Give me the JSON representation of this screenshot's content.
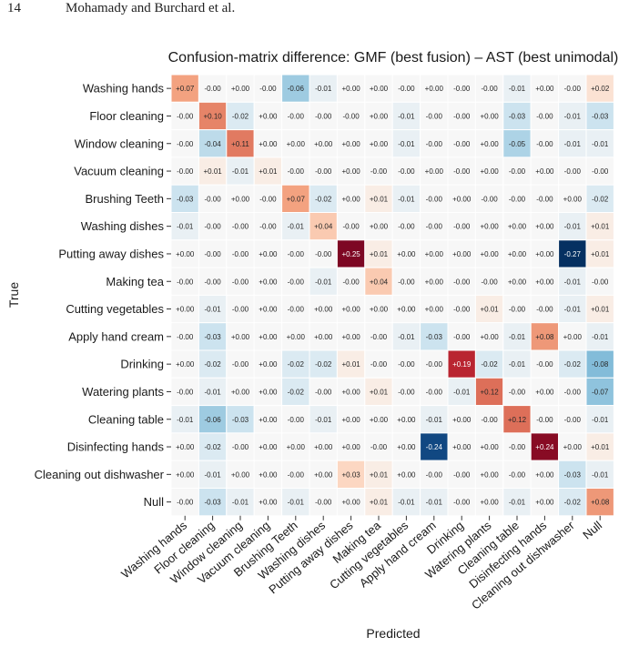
{
  "page_header": {
    "page_number": "14",
    "authors": "Mohamady and Burchard et al."
  },
  "chart_data": {
    "type": "heatmap",
    "title": "Confusion-matrix difference:  GMF (best fusion) – AST (best unimodal)",
    "xlabel": "Predicted",
    "ylabel": "True",
    "rows": [
      "Washing hands",
      "Floor cleaning",
      "Window cleaning",
      "Vacuum cleaning",
      "Brushing Teeth",
      "Washing dishes",
      "Putting away dishes",
      "Making tea",
      "Cutting vegetables",
      "Apply hand cream",
      "Drinking",
      "Watering plants",
      "Cleaning table",
      "Disinfecting hands",
      "Cleaning out dishwasher",
      "Null"
    ],
    "columns": [
      "Washing hands",
      "Floor cleaning",
      "Window cleaning",
      "Vacuum cleaning",
      "Brushing Teeth",
      "Washing dishes",
      "Putting away dishes",
      "Making tea",
      "Cutting vegetables",
      "Apply hand cream",
      "Drinking",
      "Watering plants",
      "Cleaning table",
      "Disinfecting hands",
      "Cleaning out dishwasher",
      "Null"
    ],
    "cell_labels": [
      [
        "+0.07",
        "-0.00",
        "+0.00",
        "-0.00",
        "-0.06",
        "-0.01",
        "+0.00",
        "+0.00",
        "-0.00",
        "+0.00",
        "-0.00",
        "-0.00",
        "-0.01",
        "+0.00",
        "-0.00",
        "+0.02"
      ],
      [
        "-0.00",
        "+0.10",
        "-0.02",
        "+0.00",
        "-0.00",
        "-0.00",
        "-0.00",
        "+0.00",
        "-0.01",
        "-0.00",
        "-0.00",
        "+0.00",
        "-0.03",
        "-0.00",
        "-0.01",
        "-0.03"
      ],
      [
        "-0.00",
        "-0.04",
        "+0.11",
        "+0.00",
        "+0.00",
        "+0.00",
        "+0.00",
        "+0.00",
        "-0.01",
        "-0.00",
        "-0.00",
        "+0.00",
        "-0.05",
        "-0.00",
        "-0.01",
        "-0.01"
      ],
      [
        "-0.00",
        "+0.01",
        "-0.01",
        "+0.01",
        "-0.00",
        "-0.00",
        "+0.00",
        "-0.00",
        "-0.00",
        "+0.00",
        "-0.00",
        "+0.00",
        "-0.00",
        "+0.00",
        "-0.00",
        "-0.00"
      ],
      [
        "-0.03",
        "-0.00",
        "+0.00",
        "-0.00",
        "+0.07",
        "-0.02",
        "+0.00",
        "+0.01",
        "-0.01",
        "-0.00",
        "+0.00",
        "-0.00",
        "-0.00",
        "-0.00",
        "+0.00",
        "-0.02"
      ],
      [
        "-0.01",
        "-0.00",
        "-0.00",
        "-0.00",
        "-0.01",
        "+0.04",
        "-0.00",
        "+0.00",
        "-0.00",
        "-0.00",
        "-0.00",
        "+0.00",
        "+0.00",
        "+0.00",
        "-0.01",
        "+0.01"
      ],
      [
        "+0.00",
        "-0.00",
        "-0.00",
        "+0.00",
        "-0.00",
        "-0.00",
        "+0.25",
        "+0.01",
        "+0.00",
        "+0.00",
        "+0.00",
        "+0.00",
        "+0.00",
        "+0.00",
        "-0.27",
        "+0.01"
      ],
      [
        "-0.00",
        "-0.00",
        "-0.00",
        "+0.00",
        "-0.00",
        "-0.01",
        "-0.00",
        "+0.04",
        "-0.00",
        "+0.00",
        "-0.00",
        "-0.00",
        "+0.00",
        "+0.00",
        "-0.01",
        "-0.00"
      ],
      [
        "+0.00",
        "-0.01",
        "-0.00",
        "+0.00",
        "-0.00",
        "+0.00",
        "+0.00",
        "+0.00",
        "+0.00",
        "+0.00",
        "-0.00",
        "+0.01",
        "-0.00",
        "-0.00",
        "-0.01",
        "+0.01"
      ],
      [
        "-0.00",
        "-0.03",
        "+0.00",
        "+0.00",
        "+0.00",
        "+0.00",
        "+0.00",
        "-0.00",
        "-0.01",
        "-0.03",
        "-0.00",
        "+0.00",
        "-0.01",
        "+0.08",
        "+0.00",
        "-0.01"
      ],
      [
        "+0.00",
        "-0.02",
        "-0.00",
        "+0.00",
        "-0.02",
        "-0.02",
        "+0.01",
        "-0.00",
        "-0.00",
        "-0.00",
        "+0.19",
        "-0.02",
        "-0.01",
        "-0.00",
        "-0.02",
        "-0.08"
      ],
      [
        "-0.00",
        "-0.01",
        "+0.00",
        "+0.00",
        "-0.02",
        "-0.00",
        "+0.00",
        "+0.01",
        "-0.00",
        "-0.00",
        "-0.01",
        "+0.12",
        "-0.00",
        "+0.00",
        "-0.00",
        "-0.07"
      ],
      [
        "-0.01",
        "-0.06",
        "-0.03",
        "+0.00",
        "-0.00",
        "-0.01",
        "+0.00",
        "+0.00",
        "+0.00",
        "-0.01",
        "+0.00",
        "-0.00",
        "+0.12",
        "-0.00",
        "-0.00",
        "-0.01"
      ],
      [
        "+0.00",
        "-0.02",
        "-0.00",
        "+0.00",
        "+0.00",
        "+0.00",
        "+0.00",
        "-0.00",
        "+0.00",
        "-0.24",
        "+0.00",
        "+0.00",
        "-0.00",
        "+0.24",
        "+0.00",
        "+0.01"
      ],
      [
        "+0.00",
        "-0.01",
        "+0.00",
        "+0.00",
        "-0.00",
        "+0.00",
        "+0.03",
        "+0.01",
        "+0.00",
        "-0.00",
        "-0.00",
        "+0.00",
        "-0.00",
        "+0.00",
        "-0.03",
        "-0.01"
      ],
      [
        "-0.00",
        "-0.03",
        "-0.01",
        "+0.00",
        "-0.01",
        "-0.00",
        "+0.00",
        "+0.01",
        "-0.01",
        "-0.01",
        "-0.00",
        "+0.00",
        "-0.01",
        "+0.00",
        "-0.02",
        "+0.08"
      ]
    ],
    "color_range": [
      -0.27,
      0.27
    ],
    "colormap": "RdBu_r",
    "grid": false,
    "legend": "none"
  }
}
